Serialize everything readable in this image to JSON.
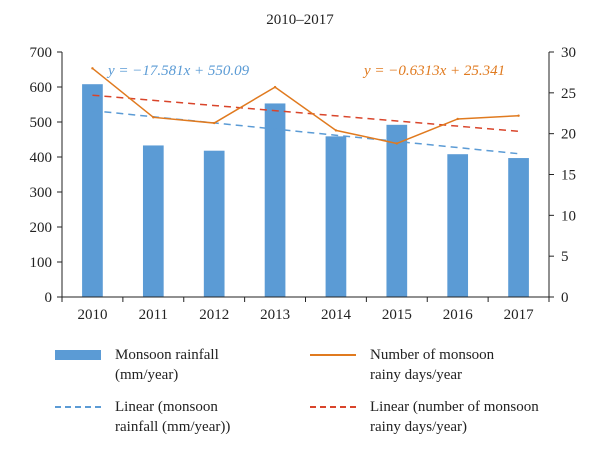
{
  "chart_data": {
    "type": "bar",
    "title": "2010–2017",
    "categories": [
      "2010",
      "2011",
      "2012",
      "2013",
      "2014",
      "2015",
      "2016",
      "2017"
    ],
    "series": [
      {
        "name": "Monsoon rainfall (mm/year)",
        "type": "bar",
        "axis": "left",
        "color": "#5b9bd5",
        "values": [
          608,
          433,
          418,
          553,
          459,
          492,
          408,
          397
        ]
      },
      {
        "name": "Number of monsoon rainy days/year",
        "type": "line",
        "axis": "right",
        "color": "#e07a1f",
        "values": [
          28,
          22,
          21.3,
          25.7,
          20.4,
          18.8,
          21.8,
          22.2
        ]
      },
      {
        "name": "Linear (monsoon rainfall (mm/year))",
        "type": "trendline",
        "axis": "left",
        "color": "#5b9bd5",
        "slope": -17.581,
        "intercept": 550.09
      },
      {
        "name": "Linear (number of monsoon rainy days/year)",
        "type": "trendline",
        "axis": "right",
        "color": "#d9452b",
        "slope": -0.6313,
        "intercept": 25.341
      }
    ],
    "y_left": {
      "ylim": [
        0,
        700
      ],
      "ticks": [
        "0",
        "100",
        "200",
        "300",
        "400",
        "500",
        "600",
        "700"
      ]
    },
    "y_right": {
      "ylim": [
        0,
        30
      ],
      "ticks": [
        "0",
        "5",
        "10",
        "15",
        "20",
        "25",
        "30"
      ]
    },
    "annotations": {
      "rainfall_equation": "y = −17.581x + 550.09",
      "days_equation": "y = −0.6313x + 25.341"
    },
    "grid": false,
    "legend_position": "bottom"
  },
  "legend": {
    "bar_label": "Monsoon rainfall\n(mm/year)",
    "line_label": "Number of monsoon\nrainy days/year",
    "trend_rain_label": "Linear (monsoon\nrainfall (mm/year))",
    "trend_days_label": "Linear (number of monsoon\nrainy days/year)"
  }
}
